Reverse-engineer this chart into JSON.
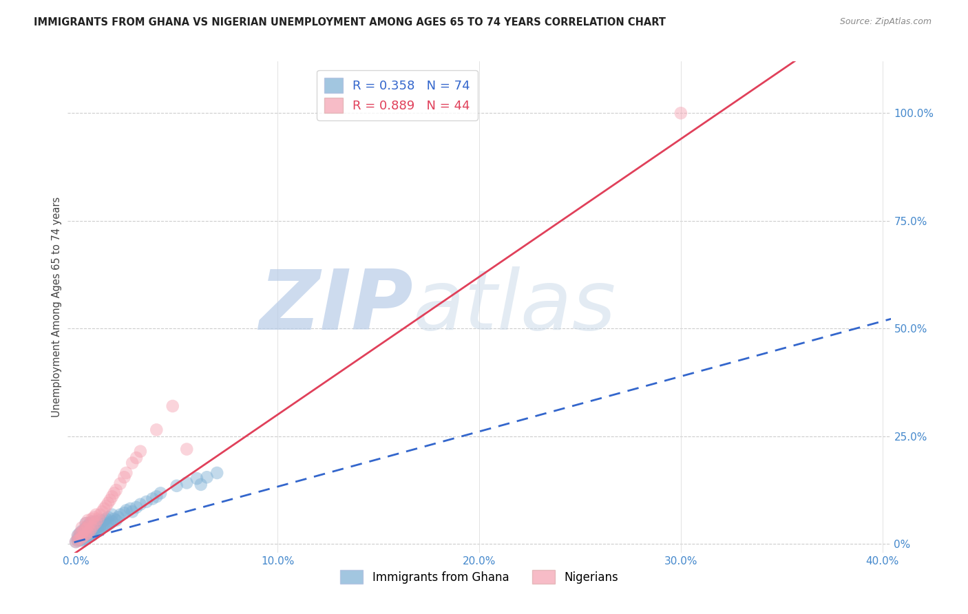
{
  "title": "IMMIGRANTS FROM GHANA VS NIGERIAN UNEMPLOYMENT AMONG AGES 65 TO 74 YEARS CORRELATION CHART",
  "source": "Source: ZipAtlas.com",
  "ylabel": "Unemployment Among Ages 65 to 74 years",
  "xlim": [
    -0.004,
    0.404
  ],
  "ylim": [
    -0.02,
    1.12
  ],
  "xticks": [
    0.0,
    0.1,
    0.2,
    0.3,
    0.4
  ],
  "xtick_labels": [
    "0.0%",
    "10.0%",
    "20.0%",
    "30.0%",
    "40.0%"
  ],
  "yticks_right": [
    0.0,
    0.25,
    0.5,
    0.75,
    1.0
  ],
  "ytick_labels_right": [
    "0%",
    "25.0%",
    "50.0%",
    "75.0%",
    "100.0%"
  ],
  "ghana_R": 0.358,
  "ghana_N": 74,
  "nigeria_R": 0.889,
  "nigeria_N": 44,
  "ghana_color": "#7bafd4",
  "nigeria_color": "#f4a0b0",
  "ghana_line_color": "#3366cc",
  "nigeria_line_color": "#e0405a",
  "watermark": "ZIPAtlas",
  "watermark_color": "#ccddf5",
  "legend_labels": [
    "Immigrants from Ghana",
    "Nigerians"
  ],
  "ghana_line_slope": 1.28,
  "ghana_line_intercept": 0.005,
  "nigeria_line_slope": 3.2,
  "nigeria_line_intercept": -0.02,
  "ghana_points_x": [
    0.0,
    0.001,
    0.001,
    0.001,
    0.002,
    0.002,
    0.002,
    0.003,
    0.003,
    0.003,
    0.003,
    0.004,
    0.004,
    0.004,
    0.004,
    0.005,
    0.005,
    0.005,
    0.005,
    0.005,
    0.006,
    0.006,
    0.006,
    0.006,
    0.007,
    0.007,
    0.007,
    0.007,
    0.008,
    0.008,
    0.008,
    0.008,
    0.009,
    0.009,
    0.009,
    0.01,
    0.01,
    0.01,
    0.011,
    0.011,
    0.012,
    0.012,
    0.012,
    0.013,
    0.013,
    0.014,
    0.014,
    0.015,
    0.015,
    0.016,
    0.016,
    0.017,
    0.018,
    0.018,
    0.019,
    0.02,
    0.021,
    0.022,
    0.024,
    0.025,
    0.027,
    0.028,
    0.03,
    0.032,
    0.035,
    0.038,
    0.04,
    0.042,
    0.05,
    0.055,
    0.06,
    0.062,
    0.065,
    0.07
  ],
  "ghana_points_y": [
    0.005,
    0.008,
    0.012,
    0.02,
    0.01,
    0.018,
    0.025,
    0.008,
    0.015,
    0.022,
    0.03,
    0.01,
    0.018,
    0.025,
    0.032,
    0.012,
    0.02,
    0.028,
    0.038,
    0.048,
    0.015,
    0.022,
    0.032,
    0.042,
    0.018,
    0.025,
    0.035,
    0.048,
    0.02,
    0.028,
    0.038,
    0.052,
    0.025,
    0.032,
    0.045,
    0.028,
    0.038,
    0.052,
    0.03,
    0.042,
    0.032,
    0.042,
    0.055,
    0.038,
    0.052,
    0.04,
    0.055,
    0.042,
    0.058,
    0.045,
    0.062,
    0.048,
    0.052,
    0.068,
    0.058,
    0.055,
    0.062,
    0.068,
    0.072,
    0.078,
    0.082,
    0.075,
    0.085,
    0.092,
    0.098,
    0.105,
    0.11,
    0.118,
    0.135,
    0.142,
    0.152,
    0.138,
    0.155,
    0.165
  ],
  "nigeria_points_x": [
    0.0,
    0.001,
    0.001,
    0.002,
    0.002,
    0.003,
    0.003,
    0.003,
    0.004,
    0.004,
    0.005,
    0.005,
    0.005,
    0.006,
    0.006,
    0.006,
    0.007,
    0.007,
    0.008,
    0.008,
    0.009,
    0.009,
    0.01,
    0.01,
    0.011,
    0.012,
    0.013,
    0.014,
    0.015,
    0.016,
    0.017,
    0.018,
    0.019,
    0.02,
    0.022,
    0.024,
    0.025,
    0.028,
    0.03,
    0.032,
    0.04,
    0.048,
    0.055,
    0.3
  ],
  "nigeria_points_y": [
    0.005,
    0.008,
    0.018,
    0.012,
    0.025,
    0.015,
    0.025,
    0.038,
    0.018,
    0.032,
    0.022,
    0.035,
    0.048,
    0.025,
    0.04,
    0.055,
    0.03,
    0.048,
    0.038,
    0.058,
    0.045,
    0.062,
    0.05,
    0.068,
    0.058,
    0.068,
    0.075,
    0.082,
    0.088,
    0.095,
    0.102,
    0.11,
    0.118,
    0.125,
    0.14,
    0.155,
    0.165,
    0.188,
    0.2,
    0.215,
    0.265,
    0.32,
    0.22,
    1.0
  ]
}
